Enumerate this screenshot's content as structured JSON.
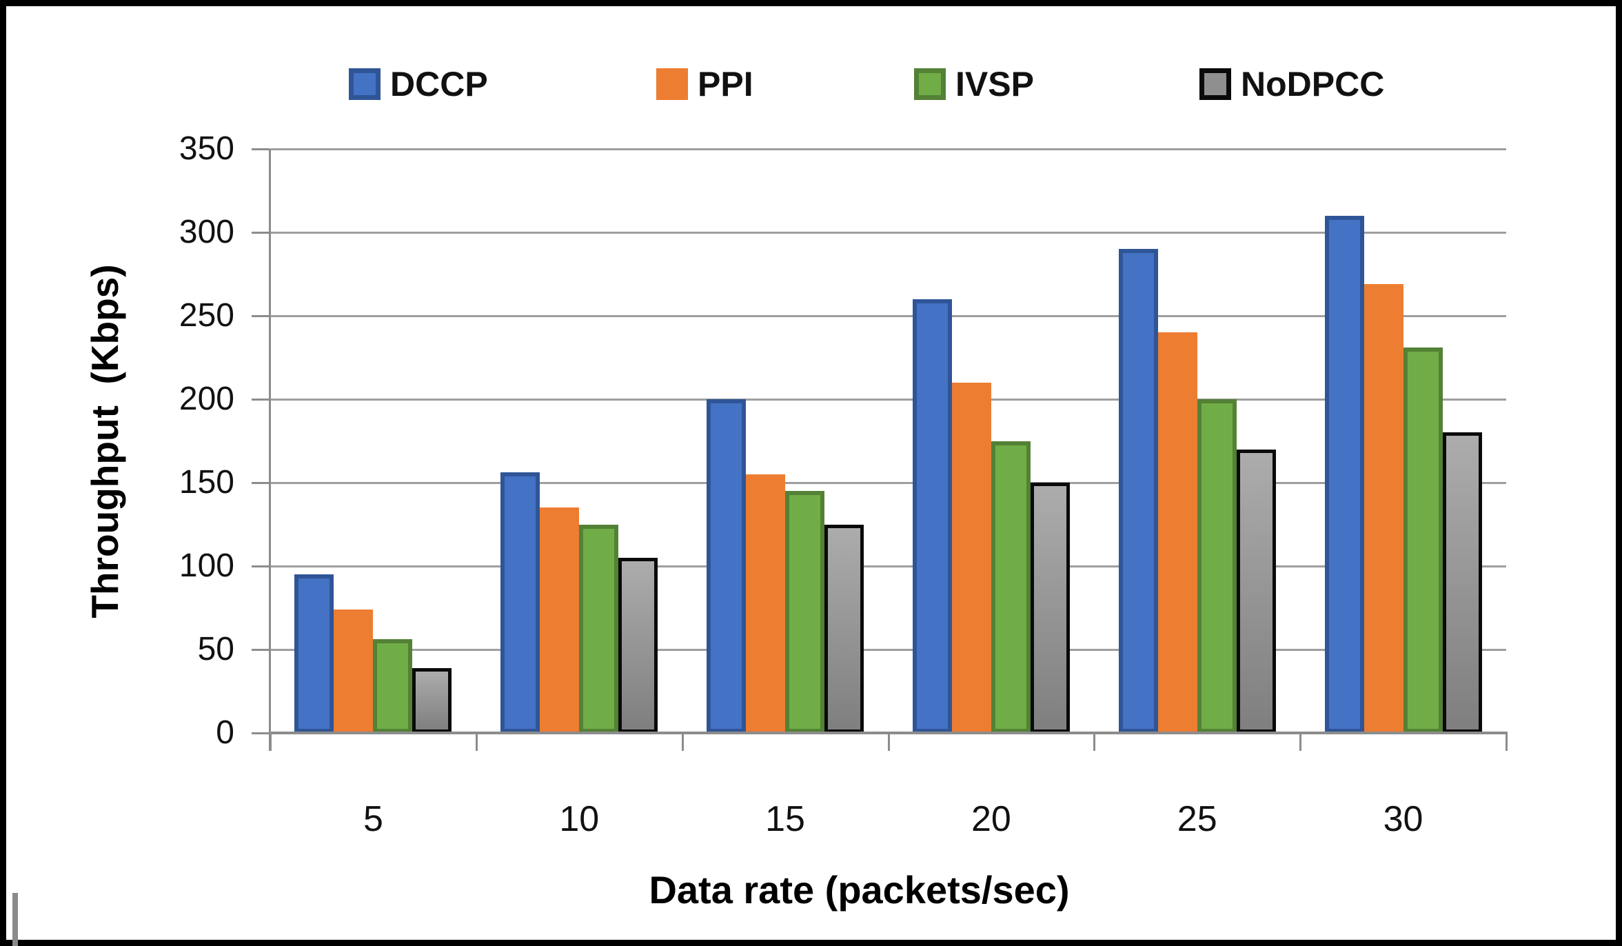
{
  "figure": {
    "kind": "grouped bar chart figure",
    "background": "#ffffff",
    "frame_color": "#000000"
  },
  "chart_data": {
    "type": "bar",
    "title": "",
    "xlabel": "Data rate (packets/sec)",
    "ylabel": "Throughput  (Kbps)",
    "categories": [
      "5",
      "10",
      "15",
      "20",
      "25",
      "30"
    ],
    "series": [
      {
        "name": "DCCP",
        "color": "#4472C4",
        "border": "#2F5597",
        "values": [
          95,
          156,
          200,
          260,
          290,
          310
        ]
      },
      {
        "name": "PPI",
        "color": "#ED7D31",
        "border": "#ED7D31",
        "values": [
          74,
          135,
          155,
          210,
          240,
          269
        ]
      },
      {
        "name": "IVSP",
        "color": "#70AD47",
        "border": "#538135",
        "values": [
          56,
          125,
          145,
          175,
          200,
          231
        ]
      },
      {
        "name": "NoDPCC",
        "color": "#ACACAC",
        "color2": "#7F7F7F",
        "border": "#0a0a0a",
        "values": [
          39,
          105,
          125,
          150,
          170,
          180
        ]
      }
    ],
    "ylim": [
      0,
      350
    ],
    "yticks": [
      0,
      50,
      100,
      150,
      200,
      250,
      300,
      350
    ],
    "grid": true,
    "gridline_color": "#9e9e9e",
    "axis_color": "#8c8c8c",
    "legend_position": "top",
    "legend": {
      "items": [
        {
          "label": "DCCP",
          "swatch_fill": "#4472C4",
          "swatch_border": "#2F5597"
        },
        {
          "label": "PPI",
          "swatch_fill": "#ED7D31",
          "swatch_border": "#ED7D31"
        },
        {
          "label": "IVSP",
          "swatch_fill": "#70AD47",
          "swatch_border": "#538135"
        },
        {
          "label": "NoDPCC",
          "swatch_fill": "#8F8F8F",
          "swatch_border": "#0a0a0a"
        }
      ]
    }
  }
}
